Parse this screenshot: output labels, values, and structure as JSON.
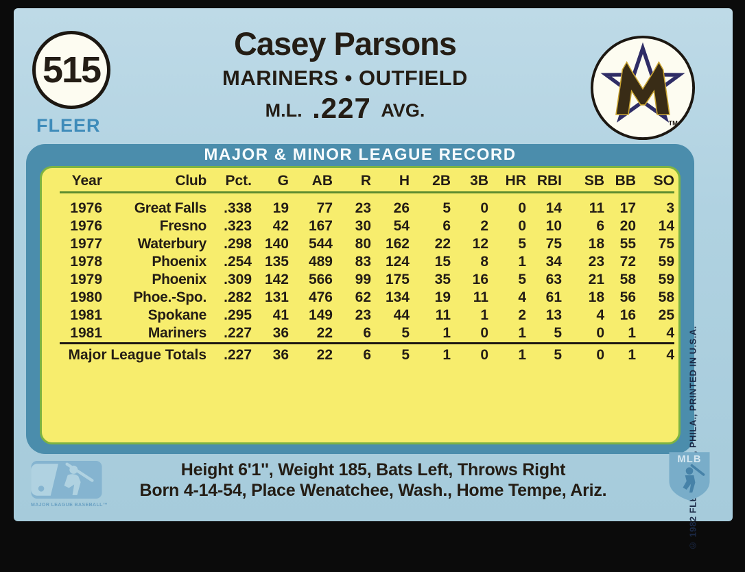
{
  "card": {
    "number": "515",
    "brand": "FLEER",
    "player_name": "Casey Parsons",
    "team_position": "MARINERS • OUTFIELD",
    "avg_label_prefix": "M.L.",
    "avg_value": ".227",
    "avg_label_suffix": "AVG.",
    "team_logo_trademark": "TM"
  },
  "record_panel": {
    "banner": "MAJOR & MINOR LEAGUE RECORD",
    "columns": [
      "Year",
      "Club",
      "Pct.",
      "G",
      "AB",
      "R",
      "H",
      "2B",
      "3B",
      "HR",
      "RBI",
      "SB",
      "BB",
      "SO"
    ],
    "rows": [
      [
        "1976",
        "Great Falls",
        ".338",
        "19",
        "77",
        "23",
        "26",
        "5",
        "0",
        "0",
        "14",
        "11",
        "17",
        "3"
      ],
      [
        "1976",
        "Fresno",
        ".323",
        "42",
        "167",
        "30",
        "54",
        "6",
        "2",
        "0",
        "10",
        "6",
        "20",
        "14"
      ],
      [
        "1977",
        "Waterbury",
        ".298",
        "140",
        "544",
        "80",
        "162",
        "22",
        "12",
        "5",
        "75",
        "18",
        "55",
        "75"
      ],
      [
        "1978",
        "Phoenix",
        ".254",
        "135",
        "489",
        "83",
        "124",
        "15",
        "8",
        "1",
        "34",
        "23",
        "72",
        "59"
      ],
      [
        "1979",
        "Phoenix",
        ".309",
        "142",
        "566",
        "99",
        "175",
        "35",
        "16",
        "5",
        "63",
        "21",
        "58",
        "59"
      ],
      [
        "1980",
        "Phoe.-Spo.",
        ".282",
        "131",
        "476",
        "62",
        "134",
        "19",
        "11",
        "4",
        "61",
        "18",
        "56",
        "58"
      ],
      [
        "1981",
        "Spokane",
        ".295",
        "41",
        "149",
        "23",
        "44",
        "11",
        "1",
        "2",
        "13",
        "4",
        "16",
        "25"
      ],
      [
        "1981",
        "Mariners",
        ".227",
        "36",
        "22",
        "6",
        "5",
        "1",
        "0",
        "1",
        "5",
        "0",
        "1",
        "4"
      ]
    ],
    "totals_label": "Major League Totals",
    "totals": [
      ".227",
      "36",
      "22",
      "6",
      "5",
      "1",
      "0",
      "1",
      "5",
      "0",
      "1",
      "4"
    ]
  },
  "footer": {
    "bio_line1": "Height 6'1'', Weight 185, Bats Left, Throws Right",
    "bio_line2": "Born 4-14-54, Place Wenatchee, Wash., Home Tempe, Ariz.",
    "mlb_logo_caption": "MAJOR LEAGUE BASEBALL™",
    "mlbpa_logo_text": "MLB"
  },
  "side": {
    "copyright": "© 1982 FLEER CORP, PHILA., PRINTED IN U.S.A."
  },
  "colors": {
    "card_bg": "#b0d2e1",
    "panel_teal": "#4b8dac",
    "table_yellow": "#f7ed6d",
    "edge_green": "#7db342",
    "brand_blue": "#3f8cba",
    "text_black": "#241d15",
    "logo_light_blue": "#85b4d0"
  }
}
